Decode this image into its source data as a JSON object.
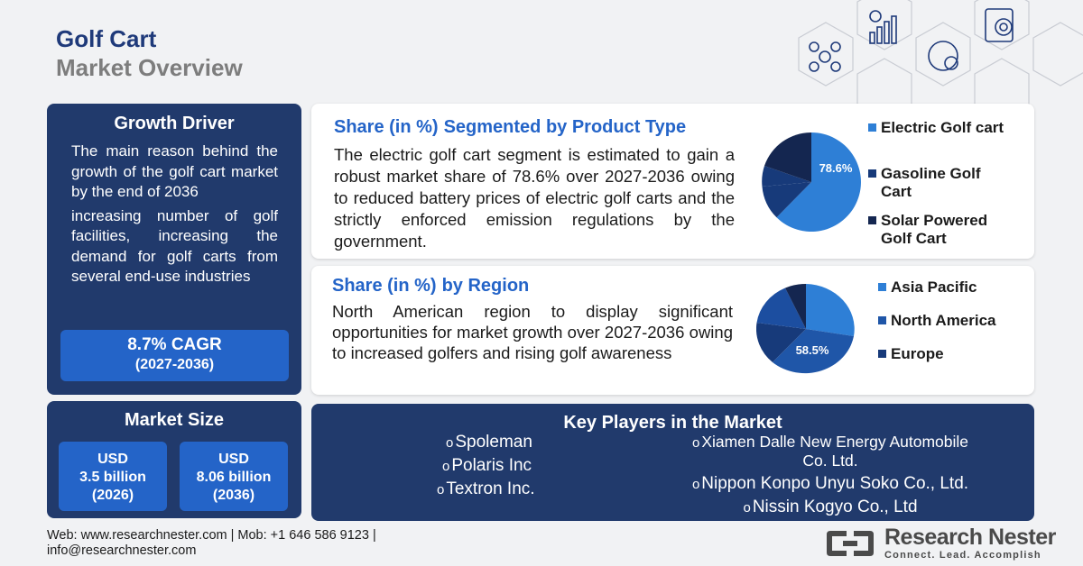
{
  "header": {
    "title": "Golf Cart",
    "subtitle": "Market Overview"
  },
  "growth_driver": {
    "title": "Growth Driver",
    "paragraph_1": "The main reason behind the growth of the golf cart market by the end of 2036",
    "paragraph_2": "increasing number of golf facilities, increasing the demand for golf carts from several end-use industries",
    "cagr": "8.7% CAGR",
    "cagr_period": "(2027-2036)"
  },
  "market_size": {
    "title": "Market Size",
    "box_1": {
      "currency": "USD",
      "value": "3.5 billion",
      "year": "(2026)"
    },
    "box_2": {
      "currency": "USD",
      "value": "8.06 billion",
      "year": "(2036)"
    }
  },
  "product_share": {
    "title_prefix": "Share (in %)",
    "title": "Segmented by Product Type",
    "text": "The electric golf cart segment is estimated to gain a robust market share of 78.6% over 2027-2036 owing to reduced battery prices of electric golf carts and the strictly enforced emission regulations by the government.",
    "pie_label": "78.6%",
    "legend": [
      {
        "label": "Electric Golf cart",
        "color": "#2e7fd6"
      },
      {
        "label": "Gasoline Golf Cart",
        "color": "#173a7a"
      },
      {
        "label": "Solar Powered Golf Cart",
        "color": "#142650"
      }
    ]
  },
  "region_share": {
    "title_prefix": "Share (in %)",
    "title": "by Region",
    "text": "North American  region to display significant opportunities for market growth over 2027-2036 owing to increased golfers and rising golf awareness",
    "pie_label": "58.5%",
    "legend": [
      {
        "label": "Asia Pacific",
        "color": "#2e7fd6"
      },
      {
        "label": "North America",
        "color": "#1f56a8"
      },
      {
        "label": "Europe",
        "color": "#173a7a"
      }
    ]
  },
  "key_players": {
    "title": "Key Players in the Market",
    "bullet": "o",
    "left": [
      "Spoleman",
      "Polaris Inc",
      "Textron Inc."
    ],
    "right": [
      "Xiamen Dalle New Energy Automobile",
      "Co. Ltd.",
      "Nippon Konpo Unyu Soko Co., Ltd.",
      "Nissin Kogyo Co., Ltd"
    ]
  },
  "footer": {
    "line_1": "Web: www.researchnester.com  | Mob:  +1 646 586 9123  |",
    "line_2": "info@researchnester.com"
  },
  "logo": {
    "name": "Research Nester",
    "tagline": "Connect. Lead. Accomplish"
  }
}
